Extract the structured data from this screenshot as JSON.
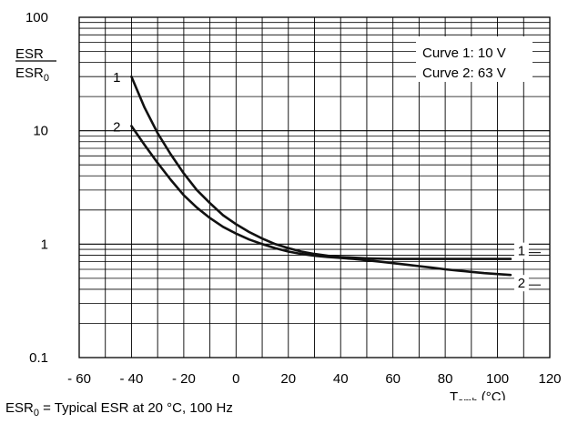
{
  "chart_data": {
    "type": "line",
    "ylabel": {
      "numerator": "ESR",
      "denominator": "ESR",
      "denominator_subscript": "0"
    },
    "xlabel": {
      "base": "T",
      "subscript": "amb",
      "unit": " (°C)"
    },
    "x_ticks": [
      "- 60",
      "- 40",
      "- 20",
      "0",
      "20",
      "40",
      "60",
      "80",
      "100",
      "120"
    ],
    "y_ticks": [
      "0.1",
      "1",
      "10",
      "100"
    ],
    "xlim": [
      -60,
      120
    ],
    "ylim": [
      0.1,
      100
    ],
    "y_scale": "log",
    "grid": true,
    "legend": {
      "lines": [
        "Curve 1: 10 V",
        "Curve 2: 63 V"
      ],
      "position": "top-right"
    },
    "series": [
      {
        "name": "1",
        "x": [
          -40,
          -35,
          -30,
          -25,
          -20,
          -15,
          -10,
          -5,
          0,
          5,
          10,
          15,
          20,
          25,
          30,
          35,
          40,
          45,
          50,
          55,
          60,
          65,
          70,
          75,
          80,
          85,
          90,
          95,
          100,
          105
        ],
        "values": [
          30,
          16,
          9.5,
          6.2,
          4.2,
          3.0,
          2.3,
          1.8,
          1.5,
          1.28,
          1.12,
          1.0,
          0.92,
          0.86,
          0.82,
          0.79,
          0.77,
          0.76,
          0.75,
          0.745,
          0.74,
          0.74,
          0.74,
          0.74,
          0.74,
          0.74,
          0.74,
          0.74,
          0.74,
          0.74
        ]
      },
      {
        "name": "2",
        "x": [
          -40,
          -35,
          -30,
          -25,
          -20,
          -15,
          -10,
          -5,
          0,
          5,
          10,
          15,
          20,
          25,
          30,
          35,
          40,
          45,
          50,
          55,
          60,
          65,
          70,
          75,
          80,
          85,
          90,
          95,
          100,
          105
        ],
        "values": [
          11,
          7.5,
          5.2,
          3.7,
          2.7,
          2.1,
          1.7,
          1.42,
          1.24,
          1.1,
          1.0,
          0.92,
          0.86,
          0.82,
          0.79,
          0.77,
          0.755,
          0.74,
          0.72,
          0.7,
          0.68,
          0.66,
          0.64,
          0.62,
          0.6,
          0.585,
          0.57,
          0.555,
          0.545,
          0.535
        ]
      }
    ]
  },
  "footnote": {
    "prefix": "ESR",
    "subscript": "0",
    "text": " = Typical ESR at 20 °C, 100 Hz"
  }
}
